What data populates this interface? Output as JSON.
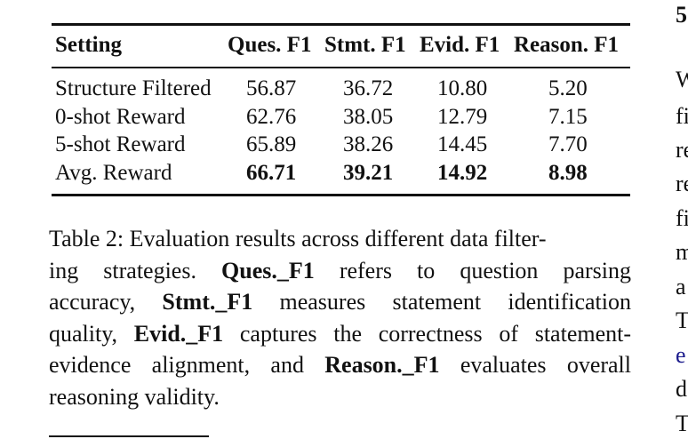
{
  "table": {
    "headers": [
      "Setting",
      "Ques. F1",
      "Stmt. F1",
      "Evid. F1",
      "Reason. F1"
    ],
    "rows": [
      {
        "setting": "Structure Filtered",
        "ques": "56.87",
        "stmt": "36.72",
        "evid": "10.80",
        "reason": "5.20"
      },
      {
        "setting": "0-shot Reward",
        "ques": "62.76",
        "stmt": "38.05",
        "evid": "12.79",
        "reason": "7.15"
      },
      {
        "setting": "5-shot Reward",
        "ques": "65.89",
        "stmt": "38.26",
        "evid": "14.45",
        "reason": "7.70"
      },
      {
        "setting": "Avg. Reward",
        "ques": "66.71",
        "stmt": "39.21",
        "evid": "14.92",
        "reason": "8.98"
      }
    ]
  },
  "caption": {
    "l1": "Table 2: Evaluation results across different data filter-",
    "l2a": "ing strategies.",
    "l2b": "Ques._F1",
    "l2c": "refers to question parsing",
    "l3a": "accuracy,",
    "l3b": "Stmt._F1",
    "l3c": "measures statement identification",
    "l4a": "quality,",
    "l4b": "Evid._F1",
    "l4c": "captures the correctness of statement-",
    "l5a": "evidence alignment, and",
    "l5b": "Reason._F1",
    "l5c": "evaluates overall",
    "l6": "reasoning validity."
  },
  "right_column": [
    "5",
    "W",
    "fi",
    "re",
    "re",
    "fi",
    "m",
    "a",
    "T",
    "e",
    "d",
    "T"
  ]
}
